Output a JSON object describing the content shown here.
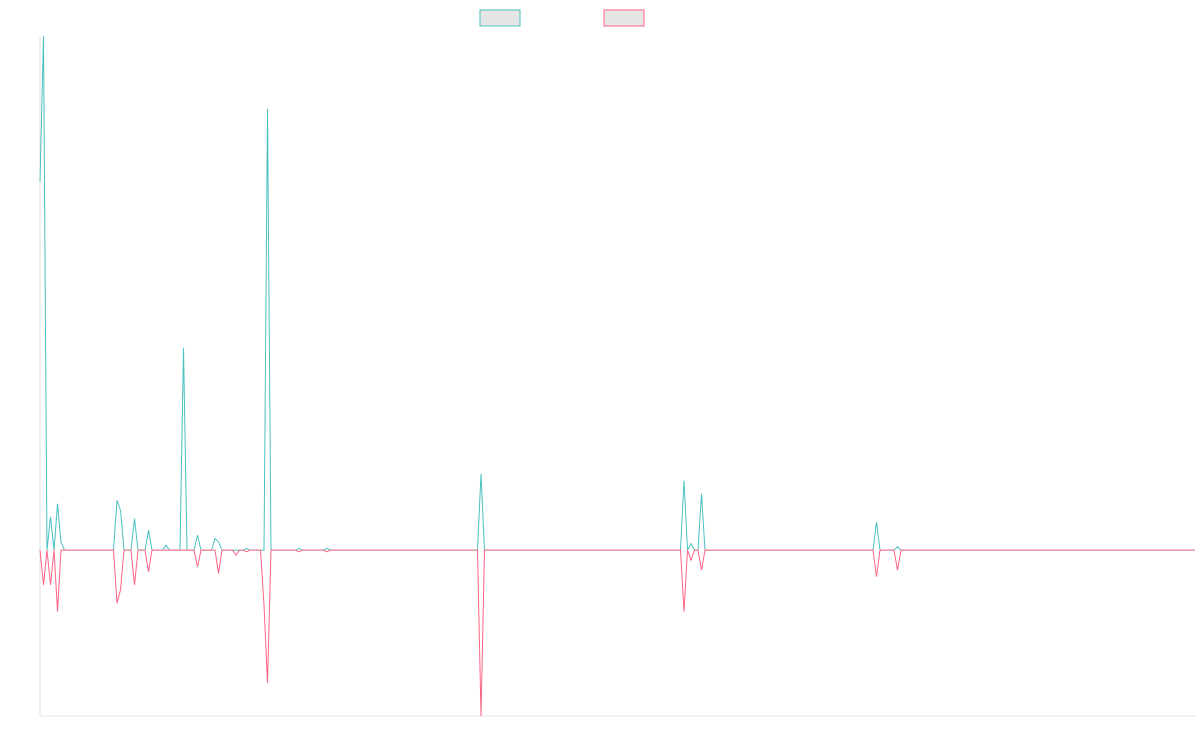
{
  "chart_data": {
    "type": "line",
    "x": [
      0,
      1,
      2,
      3,
      4,
      5,
      6,
      7,
      21,
      22,
      23,
      24,
      26,
      27,
      28,
      30,
      31,
      32,
      35,
      36,
      37,
      40,
      41,
      42,
      44,
      45,
      46,
      49,
      50,
      51,
      52,
      55,
      56,
      57,
      58,
      59,
      60,
      63,
      64,
      65,
      66,
      73,
      74,
      75,
      81,
      82,
      83,
      125,
      126,
      127,
      183,
      184,
      185,
      186,
      187,
      188,
      189,
      190,
      238,
      239,
      240,
      244,
      245,
      246,
      330
    ],
    "series": [
      {
        "color": "#4bc0c0",
        "values": [
          222,
          310,
          0,
          20,
          0,
          28,
          5,
          0,
          0,
          30,
          24,
          0,
          0,
          19,
          0,
          0,
          12,
          0,
          0,
          3,
          0,
          0,
          122,
          0,
          0,
          9,
          0,
          0,
          7,
          5,
          0,
          0,
          0,
          0,
          0,
          1,
          0,
          0,
          0,
          266,
          0,
          0,
          1,
          0,
          0,
          1,
          0,
          0,
          46,
          0,
          0,
          42,
          0,
          4,
          0,
          0,
          34,
          0,
          0,
          17,
          0,
          0,
          2,
          0,
          0
        ]
      },
      {
        "color": "#ff6384",
        "values": [
          0,
          -21,
          0,
          -21,
          0,
          -37,
          0,
          0,
          0,
          -32,
          -24,
          0,
          0,
          -21,
          0,
          0,
          -13,
          0,
          0,
          0,
          0,
          0,
          0,
          0,
          0,
          -10,
          0,
          0,
          0,
          -14,
          0,
          0,
          -3,
          0,
          0,
          -1,
          0,
          0,
          -33,
          -80,
          0,
          0,
          -1,
          0,
          0,
          -1,
          0,
          0,
          -100,
          0,
          0,
          -37,
          0,
          -6,
          0,
          0,
          -12,
          0,
          0,
          -16,
          0,
          0,
          -12,
          0,
          0
        ]
      }
    ],
    "xlim": [
      0,
      330
    ],
    "ylim": [
      -100,
      310
    ]
  }
}
